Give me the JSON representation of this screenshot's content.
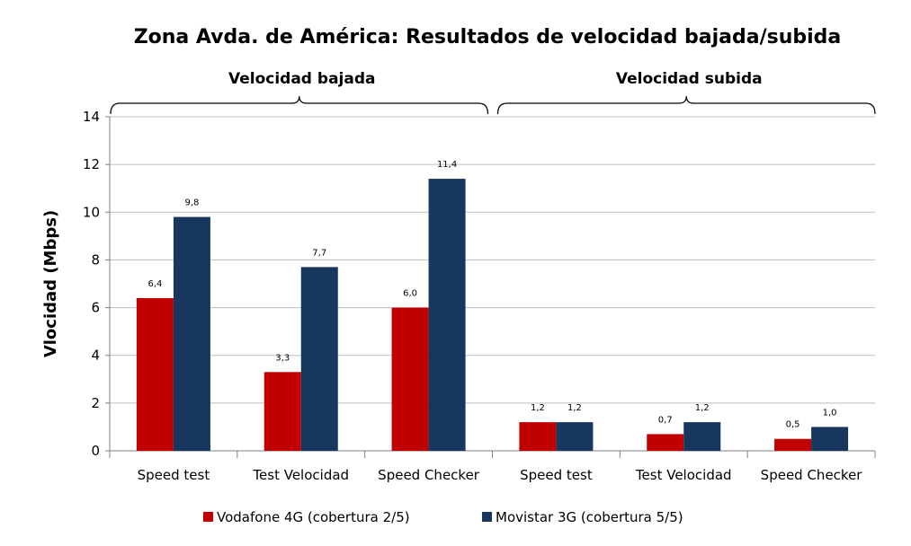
{
  "chart_data": {
    "type": "bar",
    "title": "Zona Avda. de América: Resultados de velocidad bajada/subida",
    "ylabel": "Vlocidad (Mbps)",
    "xlabel": "",
    "ylim": [
      0,
      14
    ],
    "yticks": [
      0,
      2,
      4,
      6,
      8,
      10,
      12,
      14
    ],
    "grid": true,
    "legend_position": "bottom",
    "groups": [
      {
        "label": "Velocidad bajada",
        "categories": [
          "Speed test",
          "Test Velocidad",
          "Speed Checker"
        ]
      },
      {
        "label": "Velocidad subida",
        "categories": [
          "Speed test",
          "Test Velocidad",
          "Speed Checker"
        ]
      }
    ],
    "categories": [
      "Speed test",
      "Test Velocidad",
      "Speed Checker",
      "Speed test",
      "Test Velocidad",
      "Speed Checker"
    ],
    "series": [
      {
        "name": "Vodafone 4G (cobertura 2/5)",
        "color": "#C00000",
        "values": [
          6.4,
          3.3,
          6.0,
          1.2,
          0.7,
          0.5
        ],
        "labels": [
          "6,4",
          "3,3",
          "6,0",
          "1,2",
          "0,7",
          "0,5"
        ]
      },
      {
        "name": "Movistar 3G (cobertura 5/5)",
        "color": "#17375E",
        "values": [
          9.8,
          7.7,
          11.4,
          1.2,
          1.2,
          1.0
        ],
        "labels": [
          "9,8",
          "7,7",
          "11,4",
          "1,2",
          "1,2",
          "1,0"
        ]
      }
    ]
  }
}
